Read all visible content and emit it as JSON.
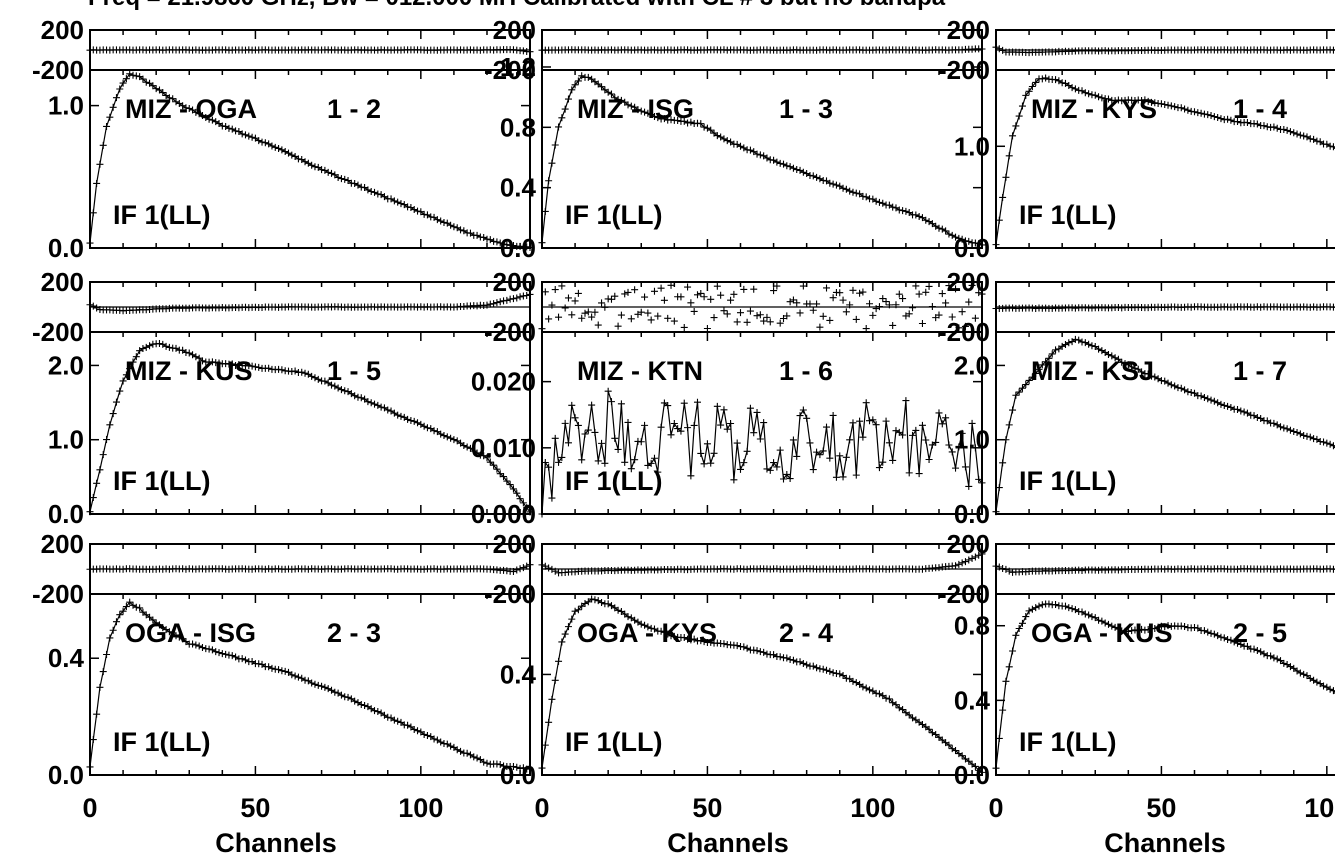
{
  "title": "Freq = 21.9860 GHz, Bw = 012.000 MH   Calibrated with CL # 3 but no bandpa",
  "x_axis_label": "Channels",
  "chart_data": {
    "type": "line",
    "layout": "3x3 grid of baseline panels, each with a phase strip on top and an amplitude plot below",
    "xlim": [
      0,
      133
    ],
    "x_ticks": [
      0,
      50,
      100
    ],
    "xlabel": "Channels",
    "phase_ylim": [
      -200,
      200
    ],
    "phase_tick_labels": [
      "200",
      "-200"
    ],
    "panels": [
      {
        "baseline": "MIZ - OGA",
        "pair": "1 - 2",
        "if_label": "IF 1(LL)",
        "amp_ylim": [
          0,
          1.25
        ],
        "amp_tick_labels": [
          "0.0",
          "1.0"
        ],
        "amp_tick_values": [
          0.0,
          1.0
        ],
        "amplitude_shape": [
          [
            0,
            0.04
          ],
          [
            2,
            0.45
          ],
          [
            5,
            0.85
          ],
          [
            9,
            1.12
          ],
          [
            12,
            1.22
          ],
          [
            15,
            1.2
          ],
          [
            20,
            1.12
          ],
          [
            28,
            1.0
          ],
          [
            40,
            0.86
          ],
          [
            55,
            0.72
          ],
          [
            70,
            0.55
          ],
          [
            85,
            0.4
          ],
          [
            100,
            0.25
          ],
          [
            115,
            0.1
          ],
          [
            125,
            0.03
          ],
          [
            133,
            0.0
          ]
        ],
        "phase_shape": [
          [
            0,
            0
          ],
          [
            120,
            0
          ],
          [
            128,
            4
          ],
          [
            133,
            -18
          ]
        ],
        "phase_noisy": false
      },
      {
        "baseline": "MIZ - ISG",
        "pair": "1 - 3",
        "if_label": "IF 1(LL)",
        "amp_ylim": [
          0,
          1.18
        ],
        "amp_tick_labels": [
          "0.0",
          "0.4",
          "0.8",
          "1.2"
        ],
        "amp_tick_values": [
          0.0,
          0.4,
          0.8,
          1.2
        ],
        "amplitude_shape": [
          [
            0,
            0.04
          ],
          [
            2,
            0.45
          ],
          [
            5,
            0.8
          ],
          [
            9,
            1.05
          ],
          [
            12,
            1.14
          ],
          [
            15,
            1.12
          ],
          [
            22,
            1.0
          ],
          [
            28,
            0.93
          ],
          [
            35,
            0.86
          ],
          [
            42,
            0.84
          ],
          [
            48,
            0.82
          ],
          [
            55,
            0.72
          ],
          [
            70,
            0.58
          ],
          [
            85,
            0.45
          ],
          [
            100,
            0.32
          ],
          [
            115,
            0.2
          ],
          [
            125,
            0.07
          ],
          [
            133,
            0.02
          ]
        ],
        "phase_shape": [
          [
            0,
            0
          ],
          [
            125,
            0
          ],
          [
            133,
            12
          ]
        ],
        "phase_noisy": false
      },
      {
        "baseline": "MIZ - KYS",
        "pair": "1 - 4",
        "if_label": "IF 1(LL)",
        "amp_ylim": [
          0,
          1.75
        ],
        "amp_tick_labels": [
          "0.0",
          "1.0"
        ],
        "amp_tick_values": [
          0.0,
          1.0
        ],
        "amplitude_shape": [
          [
            0,
            0.04
          ],
          [
            2,
            0.5
          ],
          [
            5,
            1.1
          ],
          [
            9,
            1.5
          ],
          [
            13,
            1.67
          ],
          [
            18,
            1.66
          ],
          [
            25,
            1.55
          ],
          [
            35,
            1.45
          ],
          [
            45,
            1.45
          ],
          [
            55,
            1.38
          ],
          [
            70,
            1.26
          ],
          [
            85,
            1.18
          ],
          [
            95,
            1.08
          ],
          [
            105,
            0.95
          ],
          [
            115,
            0.78
          ],
          [
            125,
            0.4
          ],
          [
            133,
            0.02
          ]
        ],
        "phase_shape": [
          [
            0,
            30
          ],
          [
            3,
            -20
          ],
          [
            10,
            -25
          ],
          [
            25,
            -10
          ],
          [
            60,
            0
          ],
          [
            110,
            0
          ],
          [
            120,
            15
          ],
          [
            133,
            90
          ]
        ],
        "phase_noisy": false
      },
      {
        "baseline": "MIZ - KUS",
        "pair": "1 - 5",
        "if_label": "IF 1(LL)",
        "amp_ylim": [
          0,
          2.45
        ],
        "amp_tick_labels": [
          "0.0",
          "1.0",
          "2.0"
        ],
        "amp_tick_values": [
          0.0,
          1.0,
          2.0
        ],
        "amplitude_shape": [
          [
            0,
            0.04
          ],
          [
            3,
            0.6
          ],
          [
            6,
            1.2
          ],
          [
            10,
            1.8
          ],
          [
            15,
            2.2
          ],
          [
            20,
            2.3
          ],
          [
            28,
            2.2
          ],
          [
            35,
            2.05
          ],
          [
            50,
            1.98
          ],
          [
            65,
            1.9
          ],
          [
            80,
            1.6
          ],
          [
            95,
            1.3
          ],
          [
            110,
            1.0
          ],
          [
            120,
            0.75
          ],
          [
            127,
            0.4
          ],
          [
            133,
            0.02
          ]
        ],
        "phase_shape": [
          [
            0,
            20
          ],
          [
            3,
            -20
          ],
          [
            10,
            -30
          ],
          [
            25,
            -10
          ],
          [
            60,
            0
          ],
          [
            110,
            0
          ],
          [
            120,
            15
          ],
          [
            133,
            100
          ]
        ],
        "phase_noisy": false
      },
      {
        "baseline": "MIZ - KTN",
        "pair": "1 - 6",
        "if_label": "IF 1(LL)",
        "amp_ylim": [
          0,
          0.0275
        ],
        "amp_tick_labels": [
          "0.000",
          "0.010",
          "0.020"
        ],
        "amp_tick_values": [
          0.0,
          0.01,
          0.02
        ],
        "amplitude_shape": [
          [
            0,
            0.005
          ],
          [
            3,
            0.004
          ],
          [
            6,
            0.009
          ],
          [
            10,
            0.012
          ],
          [
            15,
            0.011
          ],
          [
            20,
            0.013
          ],
          [
            40,
            0.012
          ],
          [
            60,
            0.011
          ],
          [
            80,
            0.01
          ],
          [
            100,
            0.011
          ],
          [
            120,
            0.012
          ],
          [
            130,
            0.009
          ],
          [
            133,
            0.004
          ]
        ],
        "amplitude_noise": 0.006,
        "phase_noisy": true
      },
      {
        "baseline": "MIZ - KSJ",
        "pair": "1 - 7",
        "if_label": "IF 1(LL)",
        "amp_ylim": [
          0,
          2.45
        ],
        "amp_tick_labels": [
          "0.0",
          "1.0",
          "2.0"
        ],
        "amp_tick_values": [
          0.0,
          1.0,
          2.0
        ],
        "amplitude_shape": [
          [
            0,
            0.04
          ],
          [
            3,
            1.0
          ],
          [
            6,
            1.6
          ],
          [
            12,
            1.9
          ],
          [
            18,
            2.2
          ],
          [
            24,
            2.35
          ],
          [
            30,
            2.25
          ],
          [
            40,
            2.0
          ],
          [
            55,
            1.7
          ],
          [
            70,
            1.45
          ],
          [
            85,
            1.2
          ],
          [
            100,
            0.95
          ],
          [
            115,
            0.68
          ],
          [
            125,
            0.4
          ],
          [
            133,
            0.02
          ]
        ],
        "phase_shape": [
          [
            0,
            -10
          ],
          [
            15,
            -10
          ],
          [
            60,
            0
          ],
          [
            115,
            0
          ],
          [
            125,
            15
          ],
          [
            133,
            90
          ]
        ],
        "phase_noisy": false
      },
      {
        "baseline": "OGA - ISG",
        "pair": "2 - 3",
        "if_label": "IF 1(LL)",
        "amp_ylim": [
          0,
          0.62
        ],
        "amp_tick_labels": [
          "0.0",
          "0.4"
        ],
        "amp_tick_values": [
          0.0,
          0.4
        ],
        "amplitude_shape": [
          [
            0,
            0.03
          ],
          [
            3,
            0.3
          ],
          [
            6,
            0.47
          ],
          [
            9,
            0.55
          ],
          [
            12,
            0.59
          ],
          [
            15,
            0.57
          ],
          [
            20,
            0.52
          ],
          [
            30,
            0.45
          ],
          [
            45,
            0.4
          ],
          [
            60,
            0.35
          ],
          [
            75,
            0.28
          ],
          [
            90,
            0.2
          ],
          [
            105,
            0.12
          ],
          [
            120,
            0.04
          ],
          [
            133,
            0.02
          ]
        ],
        "phase_shape": [
          [
            0,
            0
          ],
          [
            120,
            0
          ],
          [
            128,
            -20
          ],
          [
            133,
            35
          ]
        ],
        "phase_noisy": false
      },
      {
        "baseline": "OGA - KYS",
        "pair": "2 - 4",
        "if_label": "IF 1(LL)",
        "amp_ylim": [
          0,
          0.72
        ],
        "amp_tick_labels": [
          "0.0",
          "0.4"
        ],
        "amp_tick_values": [
          0.0,
          0.4
        ],
        "amplitude_shape": [
          [
            0,
            0.03
          ],
          [
            3,
            0.3
          ],
          [
            6,
            0.53
          ],
          [
            10,
            0.65
          ],
          [
            15,
            0.7
          ],
          [
            20,
            0.68
          ],
          [
            30,
            0.6
          ],
          [
            40,
            0.55
          ],
          [
            50,
            0.53
          ],
          [
            60,
            0.51
          ],
          [
            75,
            0.46
          ],
          [
            90,
            0.4
          ],
          [
            105,
            0.3
          ],
          [
            120,
            0.15
          ],
          [
            133,
            0.01
          ]
        ],
        "phase_shape": [
          [
            0,
            35
          ],
          [
            5,
            -30
          ],
          [
            15,
            -15
          ],
          [
            50,
            0
          ],
          [
            115,
            0
          ],
          [
            125,
            25
          ],
          [
            133,
            120
          ]
        ],
        "phase_noisy": false
      },
      {
        "baseline": "OGA - KUS",
        "pair": "2 - 5",
        "if_label": "IF 1(LL)",
        "amp_ylim": [
          0,
          0.97
        ],
        "amp_tick_labels": [
          "0.0",
          "0.4",
          "0.8"
        ],
        "amp_tick_values": [
          0.0,
          0.4,
          0.8
        ],
        "amplitude_shape": [
          [
            0,
            0.04
          ],
          [
            3,
            0.5
          ],
          [
            6,
            0.75
          ],
          [
            10,
            0.88
          ],
          [
            15,
            0.92
          ],
          [
            22,
            0.9
          ],
          [
            30,
            0.84
          ],
          [
            38,
            0.77
          ],
          [
            45,
            0.78
          ],
          [
            52,
            0.8
          ],
          [
            60,
            0.79
          ],
          [
            70,
            0.73
          ],
          [
            85,
            0.62
          ],
          [
            100,
            0.47
          ],
          [
            115,
            0.33
          ],
          [
            125,
            0.2
          ],
          [
            133,
            0.02
          ]
        ],
        "phase_shape": [
          [
            0,
            25
          ],
          [
            5,
            -25
          ],
          [
            15,
            -15
          ],
          [
            50,
            0
          ],
          [
            115,
            0
          ],
          [
            125,
            15
          ],
          [
            133,
            100
          ]
        ],
        "phase_noisy": false
      }
    ]
  }
}
